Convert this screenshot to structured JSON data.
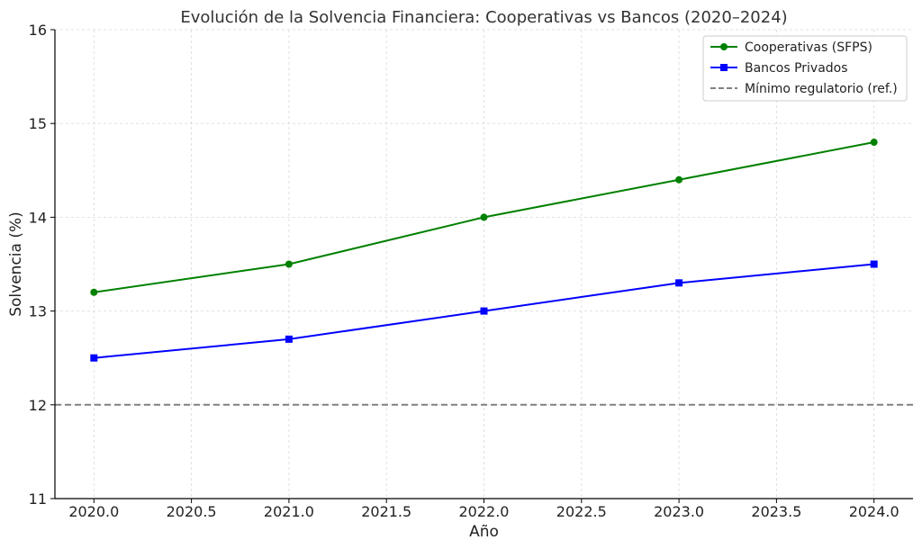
{
  "chart_data": {
    "type": "line",
    "title": "Evolución de la Solvencia Financiera: Cooperativas vs Bancos (2020–2024)",
    "xlabel": "Año",
    "ylabel": "Solvencia (%)",
    "x": [
      2020,
      2021,
      2022,
      2023,
      2024
    ],
    "xlim": [
      2019.8,
      2024.2
    ],
    "ylim": [
      11,
      16
    ],
    "xticks": [
      "2020.0",
      "2020.5",
      "2021.0",
      "2021.5",
      "2022.0",
      "2022.5",
      "2023.0",
      "2023.5",
      "2024.0"
    ],
    "yticks": [
      "11",
      "12",
      "13",
      "14",
      "15",
      "16"
    ],
    "grid": true,
    "legend_position": "top-right",
    "series": [
      {
        "name": "Cooperativas (SFPS)",
        "values": [
          13.2,
          13.5,
          14.0,
          14.4,
          14.8
        ],
        "color": "#008000",
        "marker": "circle",
        "style": "solid"
      },
      {
        "name": "Bancos Privados",
        "values": [
          12.5,
          12.7,
          13.0,
          13.3,
          13.5
        ],
        "color": "#0000ff",
        "marker": "square",
        "style": "solid"
      }
    ],
    "reference_line": {
      "name": "Mínimo regulatorio (ref.)",
      "value": 12,
      "color": "#808080",
      "style": "dashed"
    }
  }
}
